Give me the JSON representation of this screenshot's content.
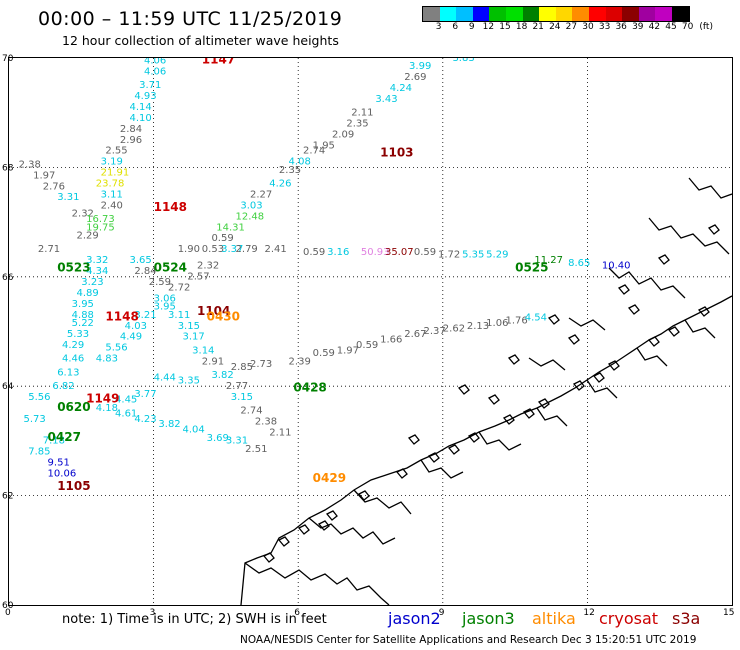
{
  "header": {
    "title": "00:00  –  11:59 UTC 11/25/2019",
    "subtitle": "12 hour collection of altimeter wave heights"
  },
  "colorbar": {
    "colors": [
      "#808080",
      "#00ffff",
      "#00bfff",
      "#0000ff",
      "#00c000",
      "#00e000",
      "#008000",
      "#ffff00",
      "#ffd700",
      "#ff8c00",
      "#ff0000",
      "#dc0000",
      "#8b0000",
      "#a000a0",
      "#c000c0",
      "#000000"
    ],
    "labels": [
      "3",
      "6",
      "9",
      "12",
      "15",
      "18",
      "21",
      "24",
      "27",
      "30",
      "33",
      "36",
      "39",
      "42",
      "45",
      "70",
      "(ft)"
    ]
  },
  "axes": {
    "y_ticks": [
      "70",
      "68",
      "66",
      "64",
      "62",
      "60"
    ],
    "x_ticks": [
      "0",
      "3",
      "6",
      "9",
      "12",
      "15"
    ]
  },
  "note": "note:  1) Time is in UTC;  2) SWH is in feet",
  "legend": {
    "jason2": {
      "label": "jason2",
      "color": "#0000cc"
    },
    "jason3": {
      "label": "jason3",
      "color": "#008000"
    },
    "altika": {
      "label": "altika",
      "color": "#ff8c00"
    },
    "cryosat": {
      "label": "cryosat",
      "color": "#cc0000"
    },
    "s3a": {
      "label": "s3a",
      "color": "#8b0000"
    }
  },
  "footer": "NOAA/NESDIS Center for Satellite Applications and Research     Dec  3 15:20:51 UTC 2019",
  "track_labels": [
    {
      "t": "1147",
      "lon": 4.0,
      "lat": 69.9,
      "c": "#cc0000"
    },
    {
      "t": "1103",
      "lon": 7.7,
      "lat": 68.2,
      "c": "#8b0000"
    },
    {
      "t": "1148",
      "lon": 3.0,
      "lat": 67.2,
      "c": "#cc0000"
    },
    {
      "t": "0524",
      "lon": 3.0,
      "lat": 66.1,
      "c": "#008000"
    },
    {
      "t": "0523",
      "lon": 1.0,
      "lat": 66.1,
      "c": "#008000"
    },
    {
      "t": "1104",
      "lon": 3.9,
      "lat": 65.3,
      "c": "#8b0000"
    },
    {
      "t": "0430",
      "lon": 4.1,
      "lat": 65.2,
      "c": "#ff8c00"
    },
    {
      "t": "1148",
      "lon": 2.0,
      "lat": 65.2,
      "c": "#cc0000"
    },
    {
      "t": "0428",
      "lon": 5.9,
      "lat": 63.9,
      "c": "#008000"
    },
    {
      "t": "1149",
      "lon": 1.6,
      "lat": 63.7,
      "c": "#cc0000"
    },
    {
      "t": "0620",
      "lon": 1.0,
      "lat": 63.55,
      "c": "#008000"
    },
    {
      "t": "0427",
      "lon": 0.8,
      "lat": 63.0,
      "c": "#008000"
    },
    {
      "t": "1105",
      "lon": 1.0,
      "lat": 62.1,
      "c": "#8b0000"
    },
    {
      "t": "0525",
      "lon": 10.5,
      "lat": 66.1,
      "c": "#008000"
    },
    {
      "t": "0429",
      "lon": 6.3,
      "lat": 62.25,
      "c": "#ff8c00"
    }
  ],
  "values": [
    {
      "t": "3.83",
      "lon": 9.2,
      "lat": 69.95,
      "c": "#00c8e0"
    },
    {
      "t": "3.99",
      "lon": 8.3,
      "lat": 69.8,
      "c": "#00c8e0"
    },
    {
      "t": "2.69",
      "lon": 8.2,
      "lat": 69.6,
      "c": "#606060"
    },
    {
      "t": "4.24",
      "lon": 7.9,
      "lat": 69.4,
      "c": "#00c8e0"
    },
    {
      "t": "3.43",
      "lon": 7.6,
      "lat": 69.2,
      "c": "#00c8e0"
    },
    {
      "t": "2.11",
      "lon": 7.1,
      "lat": 68.95,
      "c": "#606060"
    },
    {
      "t": "2.35",
      "lon": 7.0,
      "lat": 68.75,
      "c": "#606060"
    },
    {
      "t": "2.09",
      "lon": 6.7,
      "lat": 68.55,
      "c": "#606060"
    },
    {
      "t": "1.95",
      "lon": 6.3,
      "lat": 68.35,
      "c": "#606060"
    },
    {
      "t": "2.74",
      "lon": 6.1,
      "lat": 68.25,
      "c": "#606060"
    },
    {
      "t": "4.08",
      "lon": 5.8,
      "lat": 68.05,
      "c": "#00c8e0"
    },
    {
      "t": "2.35",
      "lon": 5.6,
      "lat": 67.9,
      "c": "#606060"
    },
    {
      "t": "4.26",
      "lon": 5.4,
      "lat": 67.65,
      "c": "#00c8e0"
    },
    {
      "t": "2.27",
      "lon": 5.0,
      "lat": 67.45,
      "c": "#606060"
    },
    {
      "t": "3.03",
      "lon": 4.8,
      "lat": 67.25,
      "c": "#00c8e0"
    },
    {
      "t": "12.48",
      "lon": 4.7,
      "lat": 67.05,
      "c": "#40d040"
    },
    {
      "t": "14.31",
      "lon": 4.3,
      "lat": 66.85,
      "c": "#40d040"
    },
    {
      "t": "0.59",
      "lon": 4.2,
      "lat": 66.65,
      "c": "#606060"
    },
    {
      "t": "4.06",
      "lon": 2.8,
      "lat": 69.9,
      "c": "#00c8e0"
    },
    {
      "t": "4.06",
      "lon": 2.8,
      "lat": 69.7,
      "c": "#00c8e0"
    },
    {
      "t": "3.71",
      "lon": 2.7,
      "lat": 69.45,
      "c": "#00c8e0"
    },
    {
      "t": "4.93",
      "lon": 2.6,
      "lat": 69.25,
      "c": "#00c8e0"
    },
    {
      "t": "4.14",
      "lon": 2.5,
      "lat": 69.05,
      "c": "#00c8e0"
    },
    {
      "t": "4.10",
      "lon": 2.5,
      "lat": 68.85,
      "c": "#00c8e0"
    },
    {
      "t": "2.84",
      "lon": 2.3,
      "lat": 68.65,
      "c": "#606060"
    },
    {
      "t": "2.96",
      "lon": 2.3,
      "lat": 68.45,
      "c": "#606060"
    },
    {
      "t": "2.55",
      "lon": 2.0,
      "lat": 68.25,
      "c": "#606060"
    },
    {
      "t": "3.19",
      "lon": 1.9,
      "lat": 68.05,
      "c": "#00c8e0"
    },
    {
      "t": "21.91",
      "lon": 1.9,
      "lat": 67.85,
      "c": "#e0e000"
    },
    {
      "t": "23.78",
      "lon": 1.8,
      "lat": 67.65,
      "c": "#e0e000"
    },
    {
      "t": "3.11",
      "lon": 1.9,
      "lat": 67.45,
      "c": "#00c8e0"
    },
    {
      "t": "2.40",
      "lon": 1.9,
      "lat": 67.25,
      "c": "#606060"
    },
    {
      "t": "2.38",
      "lon": 0.2,
      "lat": 68.0,
      "c": "#606060"
    },
    {
      "t": "1.97",
      "lon": 0.5,
      "lat": 67.8,
      "c": "#606060"
    },
    {
      "t": "2.76",
      "lon": 0.7,
      "lat": 67.6,
      "c": "#606060"
    },
    {
      "t": "3.31",
      "lon": 1.0,
      "lat": 67.4,
      "c": "#00c8e0"
    },
    {
      "t": "2.32",
      "lon": 1.3,
      "lat": 67.1,
      "c": "#606060"
    },
    {
      "t": "16.73",
      "lon": 1.6,
      "lat": 67.0,
      "c": "#40d040"
    },
    {
      "t": "19.75",
      "lon": 1.6,
      "lat": 66.85,
      "c": "#40d040"
    },
    {
      "t": "2.29",
      "lon": 1.4,
      "lat": 66.7,
      "c": "#606060"
    },
    {
      "t": "2.71",
      "lon": 0.6,
      "lat": 66.45,
      "c": "#606060"
    },
    {
      "t": "3.32",
      "lon": 1.6,
      "lat": 66.25,
      "c": "#00c8e0"
    },
    {
      "t": "4.34",
      "lon": 1.6,
      "lat": 66.05,
      "c": "#00c8e0"
    },
    {
      "t": "3.23",
      "lon": 1.5,
      "lat": 65.85,
      "c": "#00c8e0"
    },
    {
      "t": "4.89",
      "lon": 1.4,
      "lat": 65.65,
      "c": "#00c8e0"
    },
    {
      "t": "3.95",
      "lon": 1.3,
      "lat": 65.45,
      "c": "#00c8e0"
    },
    {
      "t": "4.88",
      "lon": 1.3,
      "lat": 65.25,
      "c": "#00c8e0"
    },
    {
      "t": "5.22",
      "lon": 1.3,
      "lat": 65.1,
      "c": "#00c8e0"
    },
    {
      "t": "5.33",
      "lon": 1.2,
      "lat": 64.9,
      "c": "#00c8e0"
    },
    {
      "t": "4.29",
      "lon": 1.1,
      "lat": 64.7,
      "c": "#00c8e0"
    },
    {
      "t": "4.46",
      "lon": 1.1,
      "lat": 64.45,
      "c": "#00c8e0"
    },
    {
      "t": "6.13",
      "lon": 1.0,
      "lat": 64.2,
      "c": "#00c8e0"
    },
    {
      "t": "6.82",
      "lon": 0.9,
      "lat": 63.95,
      "c": "#00c8e0"
    },
    {
      "t": "5.56",
      "lon": 0.4,
      "lat": 63.75,
      "c": "#00c8e0"
    },
    {
      "t": "5.73",
      "lon": 0.3,
      "lat": 63.35,
      "c": "#00c8e0"
    },
    {
      "t": "7.18",
      "lon": 0.7,
      "lat": 62.95,
      "c": "#00c8e0"
    },
    {
      "t": "7.85",
      "lon": 0.4,
      "lat": 62.75,
      "c": "#00c8e0"
    },
    {
      "t": "9.51",
      "lon": 0.8,
      "lat": 62.55,
      "c": "#0000cc"
    },
    {
      "t": "10.06",
      "lon": 0.8,
      "lat": 62.35,
      "c": "#0000cc"
    },
    {
      "t": "3.65",
      "lon": 2.5,
      "lat": 66.25,
      "c": "#00c8e0"
    },
    {
      "t": "2.84",
      "lon": 2.6,
      "lat": 66.05,
      "c": "#606060"
    },
    {
      "t": "2.59",
      "lon": 2.9,
      "lat": 65.85,
      "c": "#606060"
    },
    {
      "t": "2.72",
      "lon": 3.3,
      "lat": 65.75,
      "c": "#606060"
    },
    {
      "t": "2.57",
      "lon": 3.7,
      "lat": 65.95,
      "c": "#606060"
    },
    {
      "t": "2.32",
      "lon": 3.9,
      "lat": 66.15,
      "c": "#606060"
    },
    {
      "t": "3.06",
      "lon": 3.0,
      "lat": 65.55,
      "c": "#00c8e0"
    },
    {
      "t": "3.95",
      "lon": 3.0,
      "lat": 65.4,
      "c": "#00c8e0"
    },
    {
      "t": "3.21",
      "lon": 2.6,
      "lat": 65.25,
      "c": "#00c8e0"
    },
    {
      "t": "3.11",
      "lon": 3.3,
      "lat": 65.25,
      "c": "#00c8e0"
    },
    {
      "t": "4.03",
      "lon": 2.4,
      "lat": 65.05,
      "c": "#00c8e0"
    },
    {
      "t": "3.15",
      "lon": 3.5,
      "lat": 65.05,
      "c": "#00c8e0"
    },
    {
      "t": "4.49",
      "lon": 2.3,
      "lat": 64.85,
      "c": "#00c8e0"
    },
    {
      "t": "3.17",
      "lon": 3.6,
      "lat": 64.85,
      "c": "#00c8e0"
    },
    {
      "t": "5.56",
      "lon": 2.0,
      "lat": 64.65,
      "c": "#00c8e0"
    },
    {
      "t": "3.14",
      "lon": 3.8,
      "lat": 64.6,
      "c": "#00c8e0"
    },
    {
      "t": "4.83",
      "lon": 1.8,
      "lat": 64.45,
      "c": "#00c8e0"
    },
    {
      "t": "2.91",
      "lon": 4.0,
      "lat": 64.4,
      "c": "#606060"
    },
    {
      "t": "4.44",
      "lon": 3.0,
      "lat": 64.1,
      "c": "#00c8e0"
    },
    {
      "t": "3.35",
      "lon": 3.5,
      "lat": 64.05,
      "c": "#00c8e0"
    },
    {
      "t": "3.82",
      "lon": 4.2,
      "lat": 64.15,
      "c": "#00c8e0"
    },
    {
      "t": "2.85",
      "lon": 4.6,
      "lat": 64.3,
      "c": "#606060"
    },
    {
      "t": "2.73",
      "lon": 5.0,
      "lat": 64.35,
      "c": "#606060"
    },
    {
      "t": "2.77",
      "lon": 4.5,
      "lat": 63.95,
      "c": "#606060"
    },
    {
      "t": "3.15",
      "lon": 4.6,
      "lat": 63.75,
      "c": "#00c8e0"
    },
    {
      "t": "2.74",
      "lon": 4.8,
      "lat": 63.5,
      "c": "#606060"
    },
    {
      "t": "2.38",
      "lon": 5.1,
      "lat": 63.3,
      "c": "#606060"
    },
    {
      "t": "2.11",
      "lon": 5.4,
      "lat": 63.1,
      "c": "#606060"
    },
    {
      "t": "2.51",
      "lon": 4.9,
      "lat": 62.8,
      "c": "#606060"
    },
    {
      "t": "3.31",
      "lon": 4.5,
      "lat": 62.95,
      "c": "#00c8e0"
    },
    {
      "t": "3.69",
      "lon": 4.1,
      "lat": 63.0,
      "c": "#00c8e0"
    },
    {
      "t": "4.04",
      "lon": 3.6,
      "lat": 63.15,
      "c": "#00c8e0"
    },
    {
      "t": "3.82",
      "lon": 3.1,
      "lat": 63.25,
      "c": "#00c8e0"
    },
    {
      "t": "4.23",
      "lon": 2.6,
      "lat": 63.35,
      "c": "#00c8e0"
    },
    {
      "t": "4.61",
      "lon": 2.2,
      "lat": 63.45,
      "c": "#00c8e0"
    },
    {
      "t": "4.18",
      "lon": 1.8,
      "lat": 63.55,
      "c": "#00c8e0"
    },
    {
      "t": "4.45",
      "lon": 2.2,
      "lat": 63.7,
      "c": "#00c8e0"
    },
    {
      "t": "3.77",
      "lon": 2.6,
      "lat": 63.8,
      "c": "#00c8e0"
    },
    {
      "t": "1.90",
      "lon": 3.5,
      "lat": 66.45,
      "c": "#606060"
    },
    {
      "t": "0.53",
      "lon": 4.0,
      "lat": 66.45,
      "c": "#606060"
    },
    {
      "t": "3.37",
      "lon": 4.4,
      "lat": 66.45,
      "c": "#00c8e0"
    },
    {
      "t": "2.79",
      "lon": 4.7,
      "lat": 66.45,
      "c": "#606060"
    },
    {
      "t": "2.41",
      "lon": 5.3,
      "lat": 66.45,
      "c": "#606060"
    },
    {
      "t": "0.59",
      "lon": 6.1,
      "lat": 66.4,
      "c": "#606060"
    },
    {
      "t": "3.16",
      "lon": 6.6,
      "lat": 66.4,
      "c": "#00c8e0"
    },
    {
      "t": "50.93",
      "lon": 7.3,
      "lat": 66.4,
      "c": "#e080e0"
    },
    {
      "t": "35.07",
      "lon": 7.8,
      "lat": 66.4,
      "c": "#8b0000"
    },
    {
      "t": "0.59",
      "lon": 8.4,
      "lat": 66.4,
      "c": "#606060"
    },
    {
      "t": "1.72",
      "lon": 8.9,
      "lat": 66.35,
      "c": "#606060"
    },
    {
      "t": "5.35",
      "lon": 9.4,
      "lat": 66.35,
      "c": "#00c8e0"
    },
    {
      "t": "5.29",
      "lon": 9.9,
      "lat": 66.35,
      "c": "#00c8e0"
    },
    {
      "t": "11.27",
      "lon": 10.9,
      "lat": 66.25,
      "c": "#008000"
    },
    {
      "t": "8.65",
      "lon": 11.6,
      "lat": 66.2,
      "c": "#00c8e0"
    },
    {
      "t": "10.40",
      "lon": 12.3,
      "lat": 66.15,
      "c": "#0000cc"
    },
    {
      "t": "0.59",
      "lon": 6.3,
      "lat": 64.55,
      "c": "#606060"
    },
    {
      "t": "1.97",
      "lon": 6.8,
      "lat": 64.6,
      "c": "#606060"
    },
    {
      "t": "0.59",
      "lon": 7.2,
      "lat": 64.7,
      "c": "#606060"
    },
    {
      "t": "1.66",
      "lon": 7.7,
      "lat": 64.8,
      "c": "#606060"
    },
    {
      "t": "2.67",
      "lon": 8.2,
      "lat": 64.9,
      "c": "#606060"
    },
    {
      "t": "2.37",
      "lon": 8.6,
      "lat": 64.95,
      "c": "#606060"
    },
    {
      "t": "2.62",
      "lon": 9.0,
      "lat": 65.0,
      "c": "#606060"
    },
    {
      "t": "2.13",
      "lon": 9.5,
      "lat": 65.05,
      "c": "#606060"
    },
    {
      "t": "1.06",
      "lon": 9.9,
      "lat": 65.1,
      "c": "#606060"
    },
    {
      "t": "1.76",
      "lon": 10.3,
      "lat": 65.15,
      "c": "#606060"
    },
    {
      "t": "4.54",
      "lon": 10.7,
      "lat": 65.2,
      "c": "#00c8e0"
    },
    {
      "t": "2.39",
      "lon": 5.8,
      "lat": 64.4,
      "c": "#606060"
    }
  ]
}
